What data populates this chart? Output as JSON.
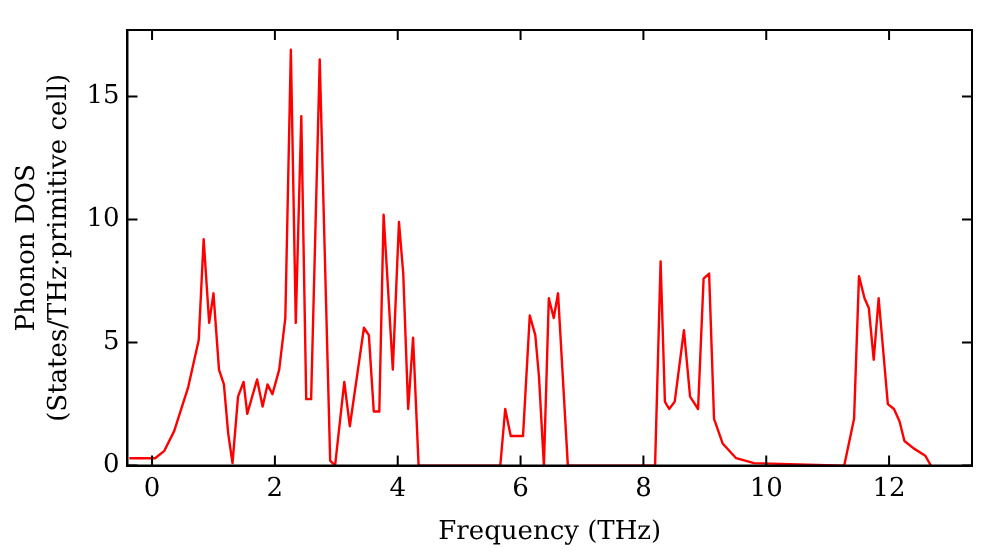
{
  "chart_data": {
    "type": "line",
    "xlabel": "Frequency (THz)",
    "ylabel": "Phonon DOS\n(States/THz·primitive cell)",
    "xlim": [
      -0.4,
      13.35
    ],
    "ylim": [
      0,
      17.7
    ],
    "xticks": [
      0,
      2,
      4,
      6,
      8,
      10,
      12
    ],
    "yticks": [
      0,
      5,
      10,
      15
    ],
    "grid": false,
    "legend": false,
    "marker": "none",
    "line_style": "solid",
    "series": [
      {
        "color": "#ff0000",
        "x": [
          -0.37,
          0.05,
          0.2,
          0.36,
          0.59,
          0.76,
          0.84,
          0.93,
          1.0,
          1.09,
          1.17,
          1.24,
          1.31,
          1.4,
          1.49,
          1.55,
          1.71,
          1.8,
          1.88,
          1.96,
          2.07,
          2.17,
          2.26,
          2.34,
          2.43,
          2.51,
          2.59,
          2.73,
          2.9,
          2.98,
          3.13,
          3.22,
          3.45,
          3.53,
          3.61,
          3.7,
          3.77,
          3.92,
          4.02,
          4.09,
          4.17,
          4.25,
          4.34,
          5.67,
          5.75,
          5.84,
          6.04,
          6.15,
          6.24,
          6.3,
          6.38,
          6.46,
          6.54,
          6.61,
          6.77,
          8.19,
          8.28,
          8.35,
          8.42,
          8.51,
          8.66,
          8.76,
          8.89,
          8.98,
          9.07,
          9.15,
          9.29,
          9.51,
          9.8,
          11.27,
          11.43,
          11.51,
          11.6,
          11.67,
          11.75,
          11.83,
          11.98,
          12.08,
          12.17,
          12.25,
          12.4,
          12.59,
          12.68
        ],
        "values": [
          0.3,
          0.3,
          0.6,
          1.4,
          3.2,
          5.1,
          9.2,
          5.8,
          7.0,
          3.9,
          3.3,
          1.3,
          0.1,
          2.8,
          3.4,
          2.1,
          3.5,
          2.4,
          3.3,
          2.9,
          3.9,
          6.0,
          16.9,
          5.8,
          14.2,
          2.7,
          2.7,
          16.5,
          0.2,
          0.0,
          3.4,
          1.6,
          5.6,
          5.3,
          2.2,
          2.2,
          10.2,
          3.9,
          9.9,
          7.8,
          2.3,
          5.2,
          0,
          0,
          2.3,
          1.2,
          1.2,
          6.1,
          5.3,
          3.6,
          0,
          6.8,
          6.0,
          7.0,
          0,
          0,
          8.3,
          2.6,
          2.3,
          2.6,
          5.5,
          2.8,
          2.3,
          7.6,
          7.8,
          1.9,
          0.9,
          0.3,
          0.1,
          0,
          1.9,
          7.7,
          6.8,
          6.4,
          4.3,
          6.8,
          2.5,
          2.3,
          1.8,
          1.0,
          0.7,
          0.4,
          0
        ]
      }
    ]
  }
}
